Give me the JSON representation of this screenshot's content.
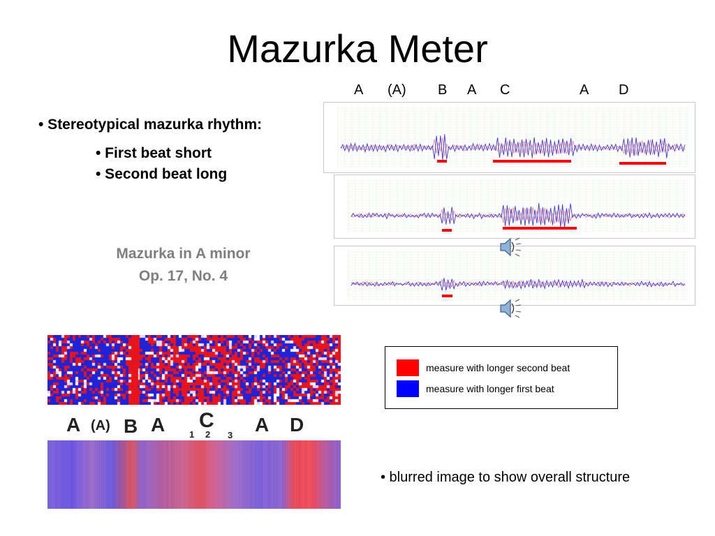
{
  "title": "Mazurka Meter",
  "section_labels_top": [
    "A",
    "(A)",
    "B",
    "A",
    "C",
    "A",
    "D"
  ],
  "bullets": {
    "main": "• Stereotypical mazurka rhythm:",
    "sub1": "• First beat short",
    "sub2": "• Second beat long"
  },
  "caption": {
    "line1": "Mazurka in A minor",
    "line2": "Op. 17, No. 4"
  },
  "icons": [
    "speaker-icon",
    "speaker-icon"
  ],
  "colors": {
    "accent_red": "#ff0000",
    "accent_blue": "#0000ff",
    "caption_gray": "#7f7f7f",
    "trace_blue": "#3a3adf",
    "trace_red": "#ff4d4d"
  },
  "heatmap_section_labels": [
    "A",
    "(A)",
    "B",
    "A",
    "C",
    "1",
    "2",
    "3",
    "A",
    "D"
  ],
  "legend": {
    "items": [
      {
        "label": "measure with longer second beat",
        "color": "#ff0000"
      },
      {
        "label": "measure with longer first beat",
        "color": "#0000ff"
      }
    ]
  },
  "blur_note": "• blurred image to show overall structure"
}
